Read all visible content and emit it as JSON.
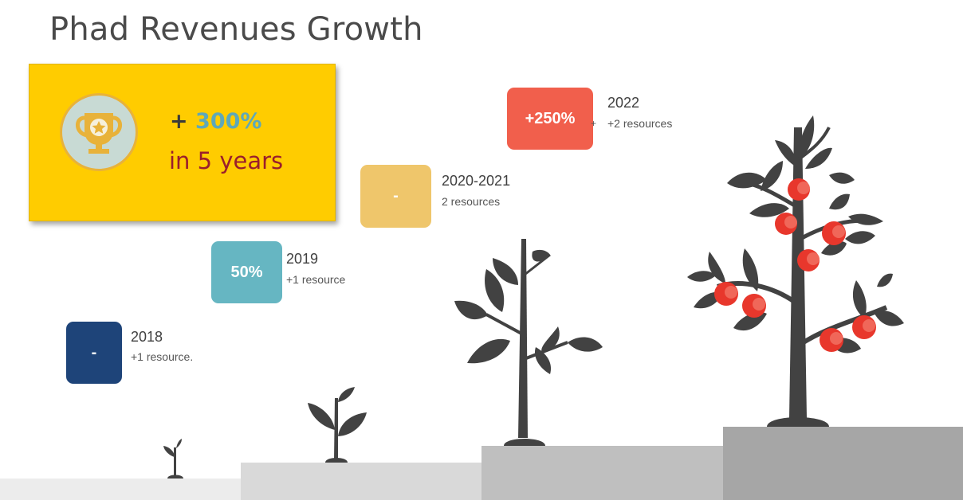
{
  "title": "Phad Revenues Growth",
  "summary": {
    "prefix": "+ ",
    "percent": "300%",
    "period": "in 5 years",
    "icon": "trophy-icon"
  },
  "milestones": [
    {
      "value": "-",
      "year": "2018",
      "resources": "+1 resource.",
      "color": "#1e4479"
    },
    {
      "value": "50%",
      "year": "2019",
      "resources": "+1 resource",
      "color": "#66b6c2"
    },
    {
      "value": "-",
      "year": "2020-2021",
      "resources": "2 resources",
      "color": "#efc66b"
    },
    {
      "value": "+250%",
      "year": "2022",
      "resources_prefix": "+",
      "resources": "+2 resources",
      "color": "#f15f4c"
    }
  ],
  "colors": {
    "callout": "#ffcc00",
    "tree": "#424242",
    "apple": "#e8372c",
    "step1": "#ececec",
    "step2": "#d9d9d9",
    "step3": "#bfbfbf",
    "step4": "#a6a6a6"
  }
}
